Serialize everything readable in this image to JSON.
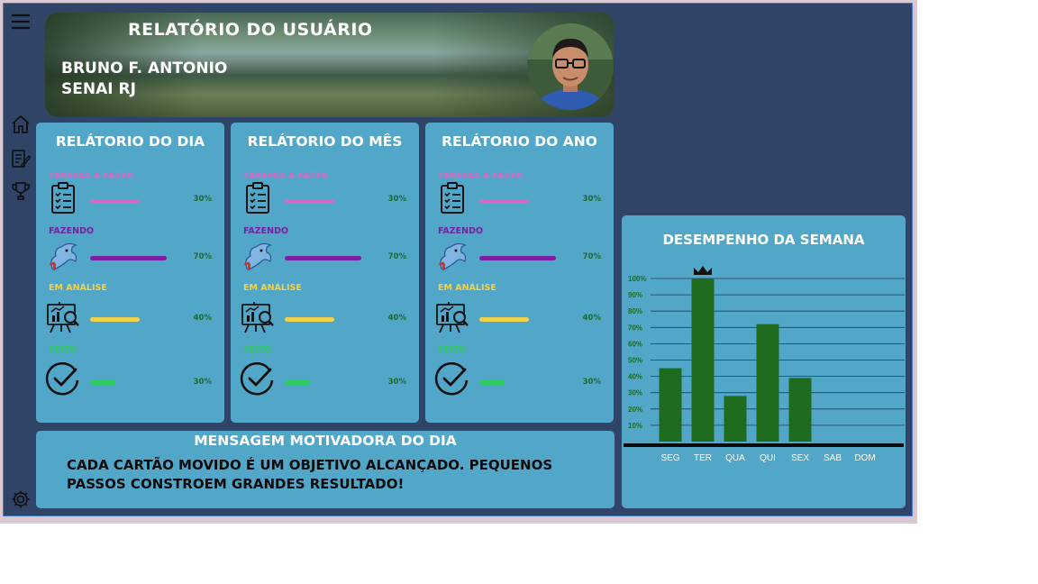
{
  "sidebar": {
    "icons": [
      "menu-icon",
      "home-icon",
      "edit-icon",
      "trophy-icon",
      "settings-icon"
    ]
  },
  "header": {
    "title": "RELATÓRIO DO USUÁRIO",
    "user_name": "BRUNO F. ANTONIO",
    "org": "SENAI RJ"
  },
  "labels": {
    "todo": "TAREFAS A FAZER",
    "doing": "FAZENDO",
    "review": "EM ANÁLISE",
    "done": "FEITO"
  },
  "reports": [
    {
      "title": "RELÁTORIO DO DIA",
      "todo": "30%",
      "doing": "70%",
      "review": "40%",
      "done": "30%"
    },
    {
      "title": "RELÁTORIO DO MÊS",
      "todo": "30%",
      "doing": "70%",
      "review": "40%",
      "done": "30%"
    },
    {
      "title": "RELÁTORIO DO ANO",
      "todo": "30%",
      "doing": "70%",
      "review": "40%",
      "done": "30%"
    }
  ],
  "colors": {
    "todo": "#d46bc3",
    "doing": "#7a1fa2",
    "review": "#f0d24b",
    "done": "#2ecc5e",
    "bar": "#1e6b1e",
    "card": "#52a6c8",
    "background": "#304468"
  },
  "message": {
    "title": "MENSAGEM MOTIVADORA DO DIA",
    "text": "CADA CARTÃO MOVIDO É UM OBJETIVO ALCANÇADO. PEQUENOS PASSOS CONSTROEM GRANDES RESULTADO!"
  },
  "chart_data": {
    "type": "bar",
    "title": "DESEMPENHO DA SEMANA",
    "categories": [
      "SEG",
      "TER",
      "QUA",
      "QUI",
      "SEX",
      "SAB",
      "DOM"
    ],
    "values": [
      45,
      100,
      28,
      72,
      39,
      0,
      0
    ],
    "ylim": [
      0,
      100
    ],
    "yticks": [
      "10%",
      "20%",
      "30%",
      "40%",
      "50%",
      "60%",
      "70%",
      "80%",
      "90%",
      "100%"
    ],
    "grid": true,
    "crown_on": "TER"
  }
}
